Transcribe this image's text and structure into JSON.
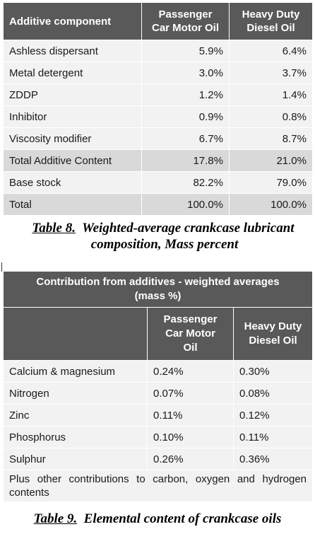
{
  "table8": {
    "headers": {
      "component": "Additive component",
      "pcmo": [
        "Passenger",
        "Car Motor Oil"
      ],
      "hddo": [
        "Heavy Duty",
        "Diesel Oil"
      ]
    },
    "rows": [
      {
        "label": "Ashless dispersant",
        "pcmo": "5.9%",
        "hddo": "6.4%"
      },
      {
        "label": "Metal detergent",
        "pcmo": "3.0%",
        "hddo": "3.7%"
      },
      {
        "label": "ZDDP",
        "pcmo": "1.2%",
        "hddo": "1.4%"
      },
      {
        "label": "Inhibitor",
        "pcmo": "0.9%",
        "hddo": "0.8%"
      },
      {
        "label": "Viscosity modifier",
        "pcmo": "6.7%",
        "hddo": "8.7%"
      },
      {
        "label": "Total Additive Content",
        "pcmo": "17.8%",
        "hddo": "21.0%"
      },
      {
        "label": "Base stock",
        "pcmo": "82.2%",
        "hddo": "79.0%"
      },
      {
        "label": "Total",
        "pcmo": "100.0%",
        "hddo": "100.0%"
      }
    ],
    "caption": {
      "label": "Table 8.",
      "line1": "Weighted-average crankcase lubricant",
      "line2": "composition, Mass percent"
    }
  },
  "table9": {
    "title": [
      "Contribution from additives - weighted averages",
      "(mass %)"
    ],
    "headers": {
      "pcmo": [
        "Passenger",
        "Car Motor",
        "Oil"
      ],
      "hddo": [
        "Heavy Duty",
        "Diesel Oil"
      ]
    },
    "rows": [
      {
        "label": "Calcium & magnesium",
        "pcmo": "0.24%",
        "hddo": "0.30%"
      },
      {
        "label": "Nitrogen",
        "pcmo": "0.07%",
        "hddo": "0.08%"
      },
      {
        "label": "Zinc",
        "pcmo": "0.11%",
        "hddo": "0.12%"
      },
      {
        "label": "Phosphorus",
        "pcmo": "0.10%",
        "hddo": "0.11%"
      },
      {
        "label": "Sulphur",
        "pcmo": "0.26%",
        "hddo": "0.36%"
      }
    ],
    "note": "Plus other contributions to carbon, oxygen and hydrogen contents",
    "caption": {
      "label": "Table 9.",
      "text": "Elemental content of crankcase oils"
    }
  },
  "colors": {
    "header_bg": "#595959",
    "row_light": "#f2f2f2",
    "row_mid": "#d9d9d9",
    "caption_underline": "#6b8e23"
  }
}
